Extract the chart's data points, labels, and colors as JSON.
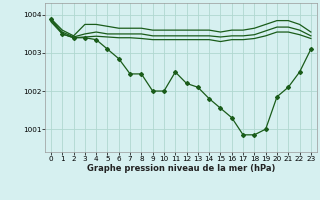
{
  "xlabel": "Graphe pression niveau de la mer (hPa)",
  "xlim": [
    -0.5,
    23.5
  ],
  "ylim": [
    1000.4,
    1004.3
  ],
  "yticks": [
    1001,
    1002,
    1003,
    1004
  ],
  "ytick_labels": [
    "1001",
    "1002",
    "1003",
    "1004"
  ],
  "xticks": [
    0,
    1,
    2,
    3,
    4,
    5,
    6,
    7,
    8,
    9,
    10,
    11,
    12,
    13,
    14,
    15,
    16,
    17,
    18,
    19,
    20,
    21,
    22,
    23
  ],
  "bg_color": "#d6f0f0",
  "grid_color": "#b0d8d0",
  "line_color": "#1a5c1a",
  "line_width": 0.9,
  "marker": "D",
  "marker_size": 2.0,
  "flat_lines": [
    [
      1003.9,
      1003.6,
      1003.45,
      1003.75,
      1003.75,
      1003.7,
      1003.65,
      1003.65,
      1003.65,
      1003.6,
      1003.6,
      1003.6,
      1003.6,
      1003.6,
      1003.6,
      1003.55,
      1003.6,
      1003.6,
      1003.65,
      1003.75,
      1003.85,
      1003.85,
      1003.75,
      1003.55
    ],
    [
      1003.85,
      1003.55,
      1003.42,
      1003.5,
      1003.55,
      1003.5,
      1003.5,
      1003.5,
      1003.5,
      1003.45,
      1003.45,
      1003.45,
      1003.45,
      1003.45,
      1003.45,
      1003.42,
      1003.45,
      1003.45,
      1003.48,
      1003.58,
      1003.68,
      1003.68,
      1003.6,
      1003.45
    ],
    [
      1003.82,
      1003.5,
      1003.4,
      1003.42,
      1003.44,
      1003.42,
      1003.4,
      1003.4,
      1003.38,
      1003.35,
      1003.35,
      1003.35,
      1003.35,
      1003.35,
      1003.35,
      1003.3,
      1003.35,
      1003.35,
      1003.38,
      1003.45,
      1003.55,
      1003.55,
      1003.48,
      1003.38
    ]
  ],
  "main_line": [
    1003.9,
    1003.5,
    1003.4,
    1003.4,
    1003.35,
    1003.1,
    1002.85,
    1002.45,
    1002.45,
    1002.0,
    1002.0,
    1002.5,
    1002.2,
    1002.1,
    1001.8,
    1001.55,
    1001.3,
    1000.85,
    1000.85,
    1001.0,
    1001.85,
    1002.1,
    1002.5,
    1003.1
  ],
  "xlabel_fontsize": 6.0,
  "tick_fontsize": 5.2
}
